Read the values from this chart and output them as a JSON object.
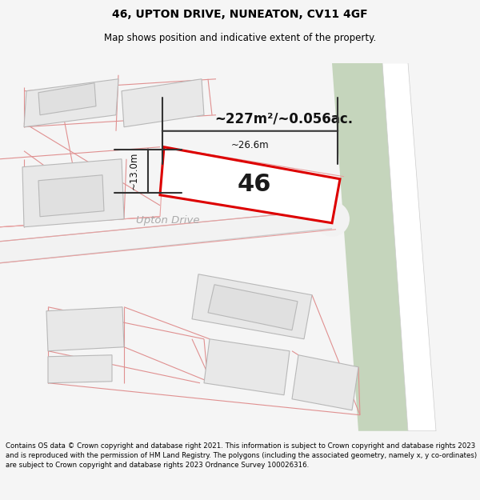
{
  "title": "46, UPTON DRIVE, NUNEATON, CV11 4GF",
  "subtitle": "Map shows position and indicative extent of the property.",
  "footer": "Contains OS data © Crown copyright and database right 2021. This information is subject to Crown copyright and database rights 2023 and is reproduced with the permission of HM Land Registry. The polygons (including the associated geometry, namely x, y co-ordinates) are subject to Crown copyright and database rights 2023 Ordnance Survey 100026316.",
  "area_label": "~227m²/~0.056ac.",
  "street_label": "Upton Drive",
  "width_label": "~26.6m",
  "height_label": "~13.0m",
  "property_number": "46",
  "map_bg": "#ffffff",
  "green_strip_color": "#c5d5bc",
  "building_fill": "#e8e8e8",
  "building_stroke_light": "#e0a8a8",
  "building_stroke_gray": "#b8b8b8",
  "red_plot_color": "#dd0000",
  "dim_line_color": "#333333",
  "title_fontsize": 10,
  "subtitle_fontsize": 8.5,
  "footer_fontsize": 6.2
}
